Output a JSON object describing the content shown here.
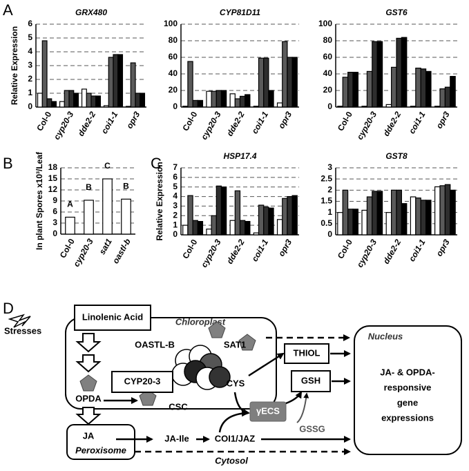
{
  "panel_labels": [
    "A",
    "B",
    "C",
    "D"
  ],
  "chart_data": [
    {
      "type": "bar",
      "title": "GRX480",
      "y_label": "Relative Expression",
      "categories": [
        "Col-0",
        "cyp20-3",
        "dde2-2",
        "coi1-1",
        "opr3"
      ],
      "series": [
        {
          "color": "#ffffff",
          "values": [
            1.0,
            0.4,
            1.3,
            0.1,
            0.05
          ]
        },
        {
          "color": "#5a5a5a",
          "values": [
            4.8,
            1.2,
            1.0,
            3.6,
            3.2
          ]
        },
        {
          "color": "#2e2e2e",
          "values": [
            0.6,
            1.2,
            0.8,
            3.8,
            1.0
          ]
        },
        {
          "color": "#000000",
          "values": [
            0.4,
            1.0,
            0.8,
            3.8,
            1.0
          ]
        }
      ],
      "ylim": [
        0,
        6
      ],
      "yticks": [
        0,
        1,
        2,
        3,
        4,
        5,
        6
      ],
      "grid": true
    },
    {
      "type": "bar",
      "title": "CYP81D11",
      "categories": [
        "Col-0",
        "cyp20-3",
        "dde2-2",
        "coi1-1",
        "opr3"
      ],
      "series": [
        {
          "color": "#ffffff",
          "values": [
            1,
            19,
            16,
            1,
            5
          ]
        },
        {
          "color": "#5a5a5a",
          "values": [
            55,
            19,
            10,
            59,
            79
          ]
        },
        {
          "color": "#2e2e2e",
          "values": [
            8,
            20,
            13,
            59,
            60
          ]
        },
        {
          "color": "#000000",
          "values": [
            8,
            20,
            15,
            20,
            60
          ]
        }
      ],
      "ylim": [
        0,
        100
      ],
      "yticks": [
        0,
        20,
        40,
        60,
        80,
        100
      ],
      "grid": true
    },
    {
      "type": "bar",
      "title": "GST6",
      "categories": [
        "Col-0",
        "cyp20-3",
        "dde2-2",
        "coi1-1",
        "opr3"
      ],
      "series": [
        {
          "color": "#ffffff",
          "values": [
            1,
            1,
            3,
            1,
            1
          ]
        },
        {
          "color": "#5a5a5a",
          "values": [
            36,
            43,
            48,
            47,
            22
          ]
        },
        {
          "color": "#2e2e2e",
          "values": [
            42,
            79,
            83,
            46,
            24
          ]
        },
        {
          "color": "#000000",
          "values": [
            42,
            79,
            84,
            43,
            37
          ]
        }
      ],
      "ylim": [
        0,
        100
      ],
      "yticks": [
        0,
        20,
        40,
        60,
        80,
        100
      ],
      "grid": true
    },
    {
      "type": "bar",
      "y_label": "In plant Spores x10³/Leaf",
      "categories": [
        "Col-0",
        "cyp20-3",
        "sat1",
        "oastl-b"
      ],
      "values": [
        4.6,
        9.2,
        15,
        9.5
      ],
      "color": "#ffffff",
      "annotations": [
        "A",
        "B",
        "C",
        "B"
      ],
      "ylim": [
        0,
        18
      ],
      "yticks": [
        0,
        3,
        6,
        9,
        12,
        15,
        18
      ],
      "grid": true
    },
    {
      "type": "bar",
      "title": "HSP17.4",
      "y_label": "Relative Expression",
      "categories": [
        "Col-0",
        "cyp20-3",
        "dde2-2",
        "coi1-1",
        "opr3"
      ],
      "series": [
        {
          "color": "#ffffff",
          "values": [
            1.0,
            0.6,
            1.5,
            0.2,
            1.6
          ]
        },
        {
          "color": "#5a5a5a",
          "values": [
            4.1,
            2.0,
            4.6,
            3.1,
            3.8
          ]
        },
        {
          "color": "#2e2e2e",
          "values": [
            1.5,
            5.1,
            1.5,
            2.9,
            4.0
          ]
        },
        {
          "color": "#000000",
          "values": [
            1.4,
            5.0,
            1.4,
            2.8,
            4.1
          ]
        }
      ],
      "ylim": [
        0,
        7
      ],
      "yticks": [
        0,
        1,
        2,
        3,
        4,
        5,
        6,
        7
      ],
      "grid": true
    },
    {
      "type": "bar",
      "title": "GST8",
      "categories": [
        "Col-0",
        "cyp20-3",
        "dde2-2",
        "coi1-1",
        "opr3"
      ],
      "series": [
        {
          "color": "#ffffff",
          "values": [
            1.0,
            1.1,
            1.0,
            1.7,
            2.15
          ]
        },
        {
          "color": "#5a5a5a",
          "values": [
            2.0,
            1.7,
            2.0,
            1.65,
            2.2
          ]
        },
        {
          "color": "#2e2e2e",
          "values": [
            1.15,
            1.95,
            2.0,
            1.55,
            2.25
          ]
        },
        {
          "color": "#000000",
          "values": [
            1.15,
            1.95,
            1.4,
            1.55,
            2.0
          ]
        }
      ],
      "ylim": [
        0,
        3
      ],
      "yticks": [
        0,
        0.5,
        1,
        1.5,
        2,
        2.5,
        3
      ],
      "grid": true
    }
  ],
  "diagram": {
    "stresses": "Stresses",
    "linolenic_acid": "Linolenic Acid",
    "chloroplast": "Chloroplast",
    "oastl_b": "OASTL-B",
    "sat1": "SAT1",
    "cyp20_3": "CYP20-3",
    "cys": "CYS",
    "csc": "CSC",
    "opda": "OPDA",
    "thiol": "THIOL",
    "gsh": "GSH",
    "gamma_ecs": "γECS",
    "gssg": "GSSG",
    "nucleus": "Nucleus",
    "nucleus_text": [
      "JA- & OPDA-",
      "responsive",
      "gene",
      "expressions"
    ],
    "ja": "JA",
    "peroxisome": "Peroxisome",
    "ja_ile": "JA-Ile",
    "coi1_jaz": "COI1/JAZ",
    "cytosol": "Cytosol"
  }
}
